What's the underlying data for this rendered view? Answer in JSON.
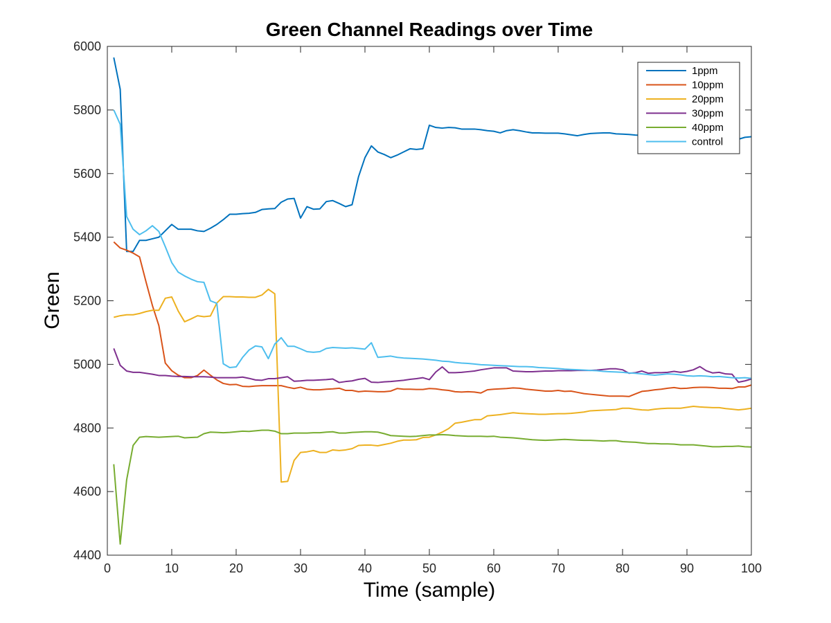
{
  "chart_data": {
    "type": "line",
    "title": "Green Channel Readings over Time",
    "xlabel": "Time (sample)",
    "ylabel": "Green",
    "xlim": [
      0,
      100
    ],
    "ylim": [
      4400,
      6000
    ],
    "xticks": [
      0,
      10,
      20,
      30,
      40,
      50,
      60,
      70,
      80,
      90,
      100
    ],
    "yticks": [
      4400,
      4600,
      4800,
      5000,
      5200,
      5400,
      5600,
      5800,
      6000
    ],
    "grid": false,
    "legend_position": "top-right",
    "series": [
      {
        "name": "1ppm",
        "color": "#0072BD",
        "x": [
          1,
          2,
          3,
          4,
          5,
          6,
          7,
          8,
          9,
          10,
          11,
          12,
          13,
          14,
          15,
          16,
          17,
          18,
          19,
          20,
          21,
          22,
          23,
          24,
          25,
          26,
          27,
          28,
          29,
          30,
          31,
          32,
          33,
          34,
          35,
          36,
          37,
          38,
          39,
          40,
          41,
          42,
          43,
          44,
          45,
          46,
          47,
          48,
          49,
          50,
          51,
          52,
          53,
          54,
          55,
          56,
          57,
          58,
          59,
          60,
          61,
          62,
          63,
          64,
          65,
          66,
          67,
          68,
          69,
          70,
          71,
          72,
          73,
          74,
          75,
          76,
          77,
          78,
          79,
          80,
          81,
          82,
          83,
          84,
          85,
          86,
          87,
          88,
          89,
          90,
          91,
          92,
          93,
          94,
          95,
          96,
          97,
          98,
          99,
          100
        ],
        "y": [
          5965,
          5865,
          5355,
          5355,
          5390,
          5390,
          5395,
          5400,
          5420,
          5440,
          5425,
          5425,
          5425,
          5420,
          5418,
          5428,
          5440,
          5455,
          5472,
          5472,
          5474,
          5475,
          5478,
          5487,
          5489,
          5490,
          5510,
          5520,
          5522,
          5460,
          5496,
          5488,
          5489,
          5512,
          5515,
          5506,
          5496,
          5502,
          5590,
          5650,
          5687,
          5668,
          5660,
          5650,
          5658,
          5668,
          5678,
          5676,
          5678,
          5752,
          5745,
          5743,
          5745,
          5744,
          5740,
          5740,
          5740,
          5738,
          5735,
          5733,
          5728,
          5735,
          5738,
          5735,
          5731,
          5728,
          5728,
          5727,
          5727,
          5727,
          5725,
          5722,
          5719,
          5723,
          5726,
          5727,
          5728,
          5728,
          5725,
          5724,
          5723,
          5721,
          5720,
          5718,
          5717,
          5716,
          5715,
          5714,
          5713,
          5712,
          5712,
          5711,
          5710,
          5710,
          5709,
          5708,
          5708,
          5708,
          5714,
          5716
        ]
      },
      {
        "name": "10ppm",
        "color": "#D95319",
        "x": [
          1,
          2,
          3,
          4,
          5,
          6,
          7,
          8,
          9,
          10,
          11,
          12,
          13,
          14,
          15,
          16,
          17,
          18,
          19,
          20,
          21,
          22,
          23,
          24,
          25,
          26,
          27,
          28,
          29,
          30,
          31,
          32,
          33,
          34,
          35,
          36,
          37,
          38,
          39,
          40,
          41,
          42,
          43,
          44,
          45,
          46,
          47,
          48,
          49,
          50,
          51,
          52,
          53,
          54,
          55,
          56,
          57,
          58,
          59,
          60,
          61,
          62,
          63,
          64,
          65,
          66,
          67,
          68,
          69,
          70,
          71,
          72,
          73,
          74,
          75,
          76,
          77,
          78,
          79,
          80,
          81,
          82,
          83,
          84,
          85,
          86,
          87,
          88,
          89,
          90,
          91,
          92,
          93,
          94,
          95,
          96,
          97,
          98,
          99,
          100
        ],
        "y": [
          5385,
          5366,
          5359,
          5350,
          5338,
          5260,
          5185,
          5122,
          5004,
          4980,
          4966,
          4958,
          4958,
          4965,
          4982,
          4966,
          4951,
          4940,
          4936,
          4937,
          4931,
          4930,
          4932,
          4933,
          4933,
          4933,
          4933,
          4928,
          4924,
          4928,
          4922,
          4920,
          4920,
          4922,
          4923,
          4925,
          4918,
          4918,
          4914,
          4916,
          4915,
          4914,
          4914,
          4916,
          4924,
          4922,
          4922,
          4921,
          4921,
          4924,
          4923,
          4920,
          4918,
          4914,
          4913,
          4914,
          4913,
          4910,
          4920,
          4922,
          4923,
          4924,
          4926,
          4925,
          4922,
          4920,
          4918,
          4916,
          4916,
          4918,
          4915,
          4916,
          4912,
          4908,
          4906,
          4904,
          4902,
          4900,
          4900,
          4900,
          4899,
          4907,
          4915,
          4917,
          4920,
          4922,
          4925,
          4927,
          4924,
          4925,
          4927,
          4928,
          4928,
          4927,
          4925,
          4925,
          4924,
          4929,
          4929,
          4935
        ]
      },
      {
        "name": "20ppm",
        "color": "#EDB120",
        "x": [
          1,
          2,
          3,
          4,
          5,
          6,
          7,
          8,
          9,
          10,
          11,
          12,
          13,
          14,
          15,
          16,
          17,
          18,
          19,
          20,
          21,
          22,
          23,
          24,
          25,
          26,
          27,
          28,
          29,
          30,
          31,
          32,
          33,
          34,
          35,
          36,
          37,
          38,
          39,
          40,
          41,
          42,
          43,
          44,
          45,
          46,
          47,
          48,
          49,
          50,
          51,
          52,
          53,
          54,
          55,
          56,
          57,
          58,
          59,
          60,
          61,
          62,
          63,
          64,
          65,
          66,
          67,
          68,
          69,
          70,
          71,
          72,
          73,
          74,
          75,
          76,
          77,
          78,
          79,
          80,
          81,
          82,
          83,
          84,
          85,
          86,
          87,
          88,
          89,
          90,
          91,
          92,
          93,
          94,
          95,
          96,
          97,
          98,
          99,
          100
        ],
        "y": [
          5148,
          5153,
          5156,
          5156,
          5160,
          5166,
          5170,
          5170,
          5208,
          5212,
          5168,
          5134,
          5143,
          5153,
          5150,
          5152,
          5193,
          5213,
          5213,
          5212,
          5212,
          5211,
          5211,
          5218,
          5236,
          5222,
          4630,
          4632,
          4698,
          4723,
          4725,
          4729,
          4723,
          4723,
          4731,
          4729,
          4731,
          4735,
          4745,
          4746,
          4746,
          4744,
          4748,
          4752,
          4758,
          4762,
          4762,
          4763,
          4770,
          4771,
          4778,
          4787,
          4798,
          4815,
          4818,
          4822,
          4826,
          4826,
          4838,
          4840,
          4842,
          4845,
          4848,
          4846,
          4845,
          4844,
          4843,
          4843,
          4844,
          4845,
          4845,
          4846,
          4848,
          4850,
          4854,
          4855,
          4856,
          4857,
          4858,
          4862,
          4862,
          4859,
          4857,
          4856,
          4859,
          4861,
          4862,
          4862,
          4862,
          4865,
          4868,
          4866,
          4865,
          4864,
          4864,
          4861,
          4859,
          4857,
          4859,
          4862
        ]
      },
      {
        "name": "30ppm",
        "color": "#7E2F8E",
        "x": [
          1,
          2,
          3,
          4,
          5,
          6,
          7,
          8,
          9,
          10,
          11,
          12,
          13,
          14,
          15,
          16,
          17,
          18,
          19,
          20,
          21,
          22,
          23,
          24,
          25,
          26,
          27,
          28,
          29,
          30,
          31,
          32,
          33,
          34,
          35,
          36,
          37,
          38,
          39,
          40,
          41,
          42,
          43,
          44,
          45,
          46,
          47,
          48,
          49,
          50,
          51,
          52,
          53,
          54,
          55,
          56,
          57,
          58,
          59,
          60,
          61,
          62,
          63,
          64,
          65,
          66,
          67,
          68,
          69,
          70,
          71,
          72,
          73,
          74,
          75,
          76,
          77,
          78,
          79,
          80,
          81,
          82,
          83,
          84,
          85,
          86,
          87,
          88,
          89,
          90,
          91,
          92,
          93,
          94,
          95,
          96,
          97,
          98,
          99,
          100
        ],
        "y": [
          5050,
          4997,
          4979,
          4975,
          4975,
          4972,
          4969,
          4965,
          4965,
          4963,
          4962,
          4962,
          4961,
          4961,
          4961,
          4960,
          4958,
          4958,
          4958,
          4958,
          4960,
          4956,
          4951,
          4950,
          4955,
          4955,
          4958,
          4961,
          4947,
          4948,
          4950,
          4950,
          4951,
          4952,
          4954,
          4943,
          4946,
          4948,
          4953,
          4956,
          4944,
          4943,
          4945,
          4946,
          4948,
          4950,
          4953,
          4955,
          4958,
          4952,
          4976,
          4992,
          4974,
          4974,
          4975,
          4977,
          4979,
          4983,
          4986,
          4989,
          4989,
          4989,
          4979,
          4978,
          4977,
          4977,
          4978,
          4979,
          4979,
          4980,
          4980,
          4980,
          4981,
          4981,
          4981,
          4982,
          4984,
          4986,
          4986,
          4983,
          4972,
          4974,
          4979,
          4972,
          4974,
          4974,
          4975,
          4978,
          4975,
          4978,
          4983,
          4993,
          4980,
          4973,
          4975,
          4970,
          4969,
          4944,
          4948,
          4954
        ]
      },
      {
        "name": "40ppm",
        "color": "#77AC30",
        "x": [
          1,
          2,
          3,
          4,
          5,
          6,
          7,
          8,
          9,
          10,
          11,
          12,
          13,
          14,
          15,
          16,
          17,
          18,
          19,
          20,
          21,
          22,
          23,
          24,
          25,
          26,
          27,
          28,
          29,
          30,
          31,
          32,
          33,
          34,
          35,
          36,
          37,
          38,
          39,
          40,
          41,
          42,
          43,
          44,
          45,
          46,
          47,
          48,
          49,
          50,
          51,
          52,
          53,
          54,
          55,
          56,
          57,
          58,
          59,
          60,
          61,
          62,
          63,
          64,
          65,
          66,
          67,
          68,
          69,
          70,
          71,
          72,
          73,
          74,
          75,
          76,
          77,
          78,
          79,
          80,
          81,
          82,
          83,
          84,
          85,
          86,
          87,
          88,
          89,
          90,
          91,
          92,
          93,
          94,
          95,
          96,
          97,
          98,
          99,
          100
        ],
        "y": [
          4686,
          4435,
          4637,
          4745,
          4771,
          4773,
          4772,
          4771,
          4772,
          4773,
          4774,
          4769,
          4770,
          4771,
          4782,
          4787,
          4786,
          4785,
          4786,
          4788,
          4790,
          4789,
          4791,
          4793,
          4793,
          4790,
          4782,
          4782,
          4784,
          4784,
          4784,
          4785,
          4785,
          4787,
          4788,
          4784,
          4784,
          4786,
          4787,
          4788,
          4788,
          4787,
          4782,
          4776,
          4775,
          4774,
          4773,
          4774,
          4776,
          4778,
          4778,
          4779,
          4778,
          4776,
          4775,
          4774,
          4774,
          4774,
          4773,
          4774,
          4771,
          4770,
          4769,
          4767,
          4765,
          4763,
          4762,
          4761,
          4762,
          4763,
          4764,
          4763,
          4762,
          4761,
          4761,
          4760,
          4759,
          4760,
          4760,
          4757,
          4756,
          4755,
          4753,
          4751,
          4751,
          4750,
          4750,
          4749,
          4747,
          4747,
          4747,
          4745,
          4743,
          4741,
          4741,
          4742,
          4742,
          4743,
          4741,
          4740
        ]
      },
      {
        "name": "control",
        "color": "#4DBEEE",
        "x": [
          1,
          2,
          3,
          4,
          5,
          6,
          7,
          8,
          9,
          10,
          11,
          12,
          13,
          14,
          15,
          16,
          17,
          18,
          19,
          20,
          21,
          22,
          23,
          24,
          25,
          26,
          27,
          28,
          29,
          30,
          31,
          32,
          33,
          34,
          35,
          36,
          37,
          38,
          39,
          40,
          41,
          42,
          43,
          44,
          45,
          46,
          47,
          48,
          49,
          50,
          51,
          52,
          53,
          54,
          55,
          56,
          57,
          58,
          59,
          60,
          61,
          62,
          63,
          64,
          65,
          66,
          67,
          68,
          69,
          70,
          71,
          72,
          73,
          74,
          75,
          76,
          77,
          78,
          79,
          80,
          81,
          82,
          83,
          84,
          85,
          86,
          87,
          88,
          89,
          90,
          91,
          92,
          93,
          94,
          95,
          96,
          97,
          98,
          99,
          100
        ],
        "y": [
          5800,
          5755,
          5465,
          5425,
          5408,
          5420,
          5436,
          5418,
          5370,
          5320,
          5290,
          5278,
          5268,
          5260,
          5258,
          5200,
          5192,
          5002,
          4990,
          4992,
          5022,
          5045,
          5058,
          5055,
          5018,
          5064,
          5084,
          5057,
          5057,
          5049,
          5040,
          5038,
          5040,
          5050,
          5053,
          5052,
          5051,
          5052,
          5050,
          5048,
          5068,
          5022,
          5024,
          5026,
          5022,
          5020,
          5019,
          5018,
          5017,
          5015,
          5013,
          5010,
          5009,
          5006,
          5004,
          5003,
          5001,
          4999,
          4998,
          4997,
          4996,
          4995,
          4994,
          4993,
          4993,
          4992,
          4990,
          4989,
          4988,
          4987,
          4985,
          4984,
          4983,
          4982,
          4981,
          4980,
          4978,
          4977,
          4976,
          4975,
          4973,
          4972,
          4970,
          4968,
          4966,
          4968,
          4970,
          4969,
          4967,
          4964,
          4963,
          4964,
          4963,
          4961,
          4962,
          4960,
          4958,
          4957,
          4958,
          4956
        ]
      }
    ]
  }
}
